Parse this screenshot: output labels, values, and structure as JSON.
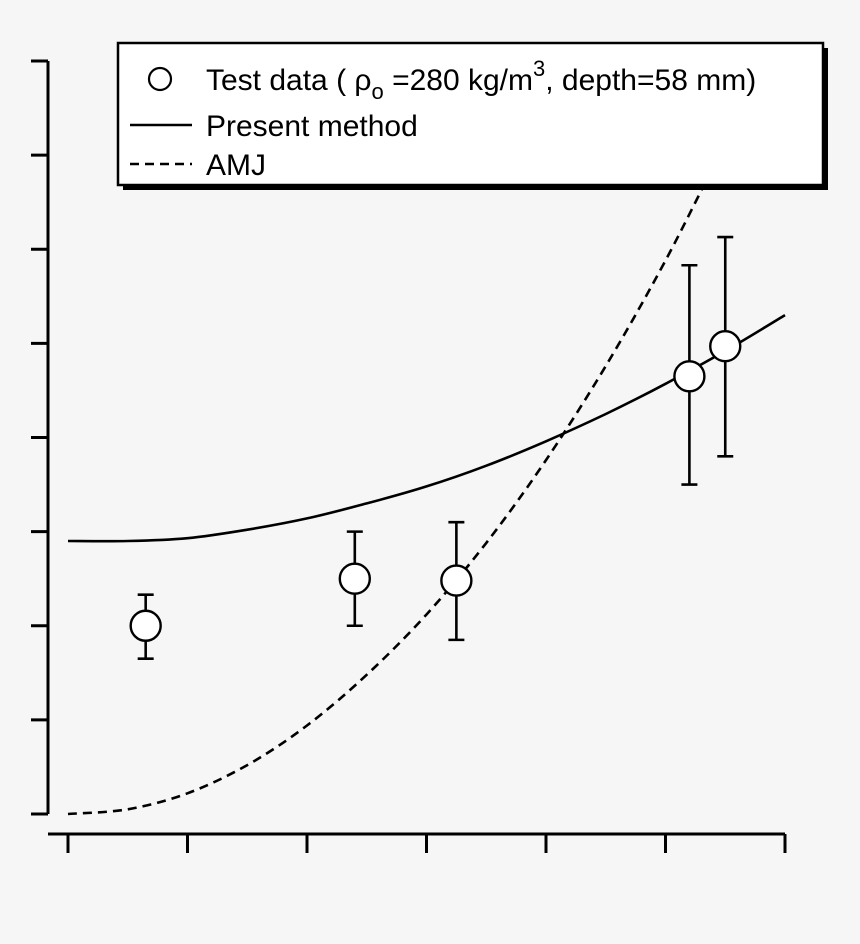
{
  "chart_data": {
    "type": "scatter",
    "title": "",
    "xlabel": "",
    "ylabel": "",
    "xlim": [
      0,
      6
    ],
    "ylim": [
      0,
      8
    ],
    "x_ticks": [
      0,
      1,
      2,
      3,
      4,
      5,
      6
    ],
    "y_ticks": [
      0,
      1,
      2,
      3,
      4,
      5,
      6,
      7,
      8
    ],
    "grid": false,
    "legend_position": "top-right",
    "legend": {
      "test_prefix": "Test data ( ",
      "rho": "ρ",
      "rho_sub": "o",
      "test_mid": " =280 kg/m",
      "test_sup": "3",
      "test_suffix": ", depth=58 mm)",
      "present": "Present method",
      "amj": "AMJ"
    },
    "series": [
      {
        "name": "Test data ( ρo =280 kg/m3, depth=58 mm)",
        "kind": "points",
        "x": [
          0.65,
          2.4,
          3.25,
          5.2,
          5.5
        ],
        "y": [
          2.0,
          2.5,
          2.48,
          4.65,
          4.97
        ],
        "y_err_low": [
          1.65,
          2.0,
          1.85,
          3.5,
          3.8
        ],
        "y_err_high": [
          2.33,
          3.0,
          3.1,
          5.83,
          6.13
        ]
      },
      {
        "name": "Present method",
        "kind": "line",
        "style": "solid",
        "x": [
          0,
          0.5,
          1,
          1.5,
          2,
          2.5,
          3,
          3.5,
          4,
          4.5,
          5,
          5.5,
          6
        ],
        "y": [
          2.9,
          2.9,
          2.93,
          3.02,
          3.14,
          3.3,
          3.48,
          3.7,
          3.96,
          4.25,
          4.57,
          4.92,
          5.3
        ]
      },
      {
        "name": "AMJ",
        "kind": "line",
        "style": "dashed",
        "x": [
          0,
          0.5,
          1,
          1.5,
          2,
          2.5,
          3,
          3.5,
          4,
          4.5,
          5,
          5.5,
          5.8
        ],
        "y": [
          0,
          0.05,
          0.22,
          0.52,
          0.94,
          1.48,
          2.12,
          2.88,
          3.76,
          4.76,
          5.88,
          7.12,
          7.75
        ]
      }
    ]
  }
}
